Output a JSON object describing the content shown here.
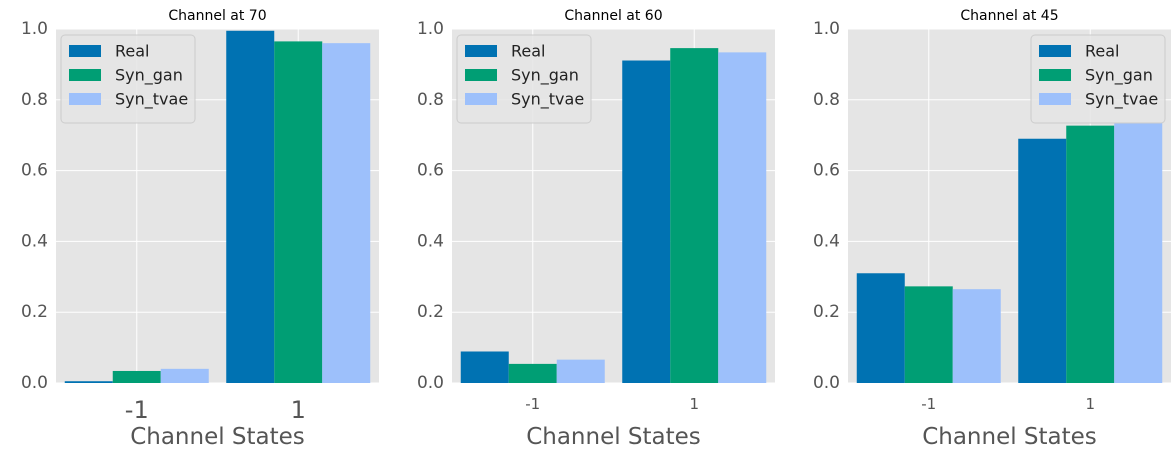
{
  "chart_data": [
    {
      "type": "bar",
      "title": "Channel at 70",
      "xlabel": "Channel States",
      "ylabel": "",
      "categories": [
        "-1",
        "1"
      ],
      "ylim": [
        0,
        1.0
      ],
      "yticks": [
        "0.0",
        "0.2",
        "0.4",
        "0.6",
        "0.8",
        "1.0"
      ],
      "grid": true,
      "legend_position": "top-left",
      "series": [
        {
          "name": "Real",
          "values": [
            0.005,
            0.995
          ],
          "color": "#0072b2"
        },
        {
          "name": "Syn_gan",
          "values": [
            0.034,
            0.965
          ],
          "color": "#009e74"
        },
        {
          "name": "Syn_tvae",
          "values": [
            0.04,
            0.96
          ],
          "color": "#9dc0fb"
        }
      ]
    },
    {
      "type": "bar",
      "title": "Channel at 60",
      "xlabel": "Channel States",
      "ylabel": "",
      "categories": [
        "-1",
        "1"
      ],
      "ylim": [
        0,
        1.0
      ],
      "yticks": [
        "0.0",
        "0.2",
        "0.4",
        "0.6",
        "0.8",
        "1.0"
      ],
      "grid": true,
      "legend_position": "top-left",
      "series": [
        {
          "name": "Real",
          "values": [
            0.089,
            0.911
          ],
          "color": "#0072b2"
        },
        {
          "name": "Syn_gan",
          "values": [
            0.054,
            0.946
          ],
          "color": "#009e74"
        },
        {
          "name": "Syn_tvae",
          "values": [
            0.066,
            0.934
          ],
          "color": "#9dc0fb"
        }
      ]
    },
    {
      "type": "bar",
      "title": "Channel at 45",
      "xlabel": "Channel States",
      "ylabel": "",
      "categories": [
        "-1",
        "1"
      ],
      "ylim": [
        0,
        1.0
      ],
      "yticks": [
        "0.0",
        "0.2",
        "0.4",
        "0.6",
        "0.8",
        "1.0"
      ],
      "grid": true,
      "legend_position": "top-right",
      "series": [
        {
          "name": "Real",
          "values": [
            0.31,
            0.69
          ],
          "color": "#0072b2"
        },
        {
          "name": "Syn_gan",
          "values": [
            0.273,
            0.727
          ],
          "color": "#009e74"
        },
        {
          "name": "Syn_tvae",
          "values": [
            0.265,
            0.735
          ],
          "color": "#9dc0fb"
        }
      ]
    }
  ],
  "style": {
    "plot_background": "#e5e5e5",
    "grid_color": "#ffffff"
  }
}
